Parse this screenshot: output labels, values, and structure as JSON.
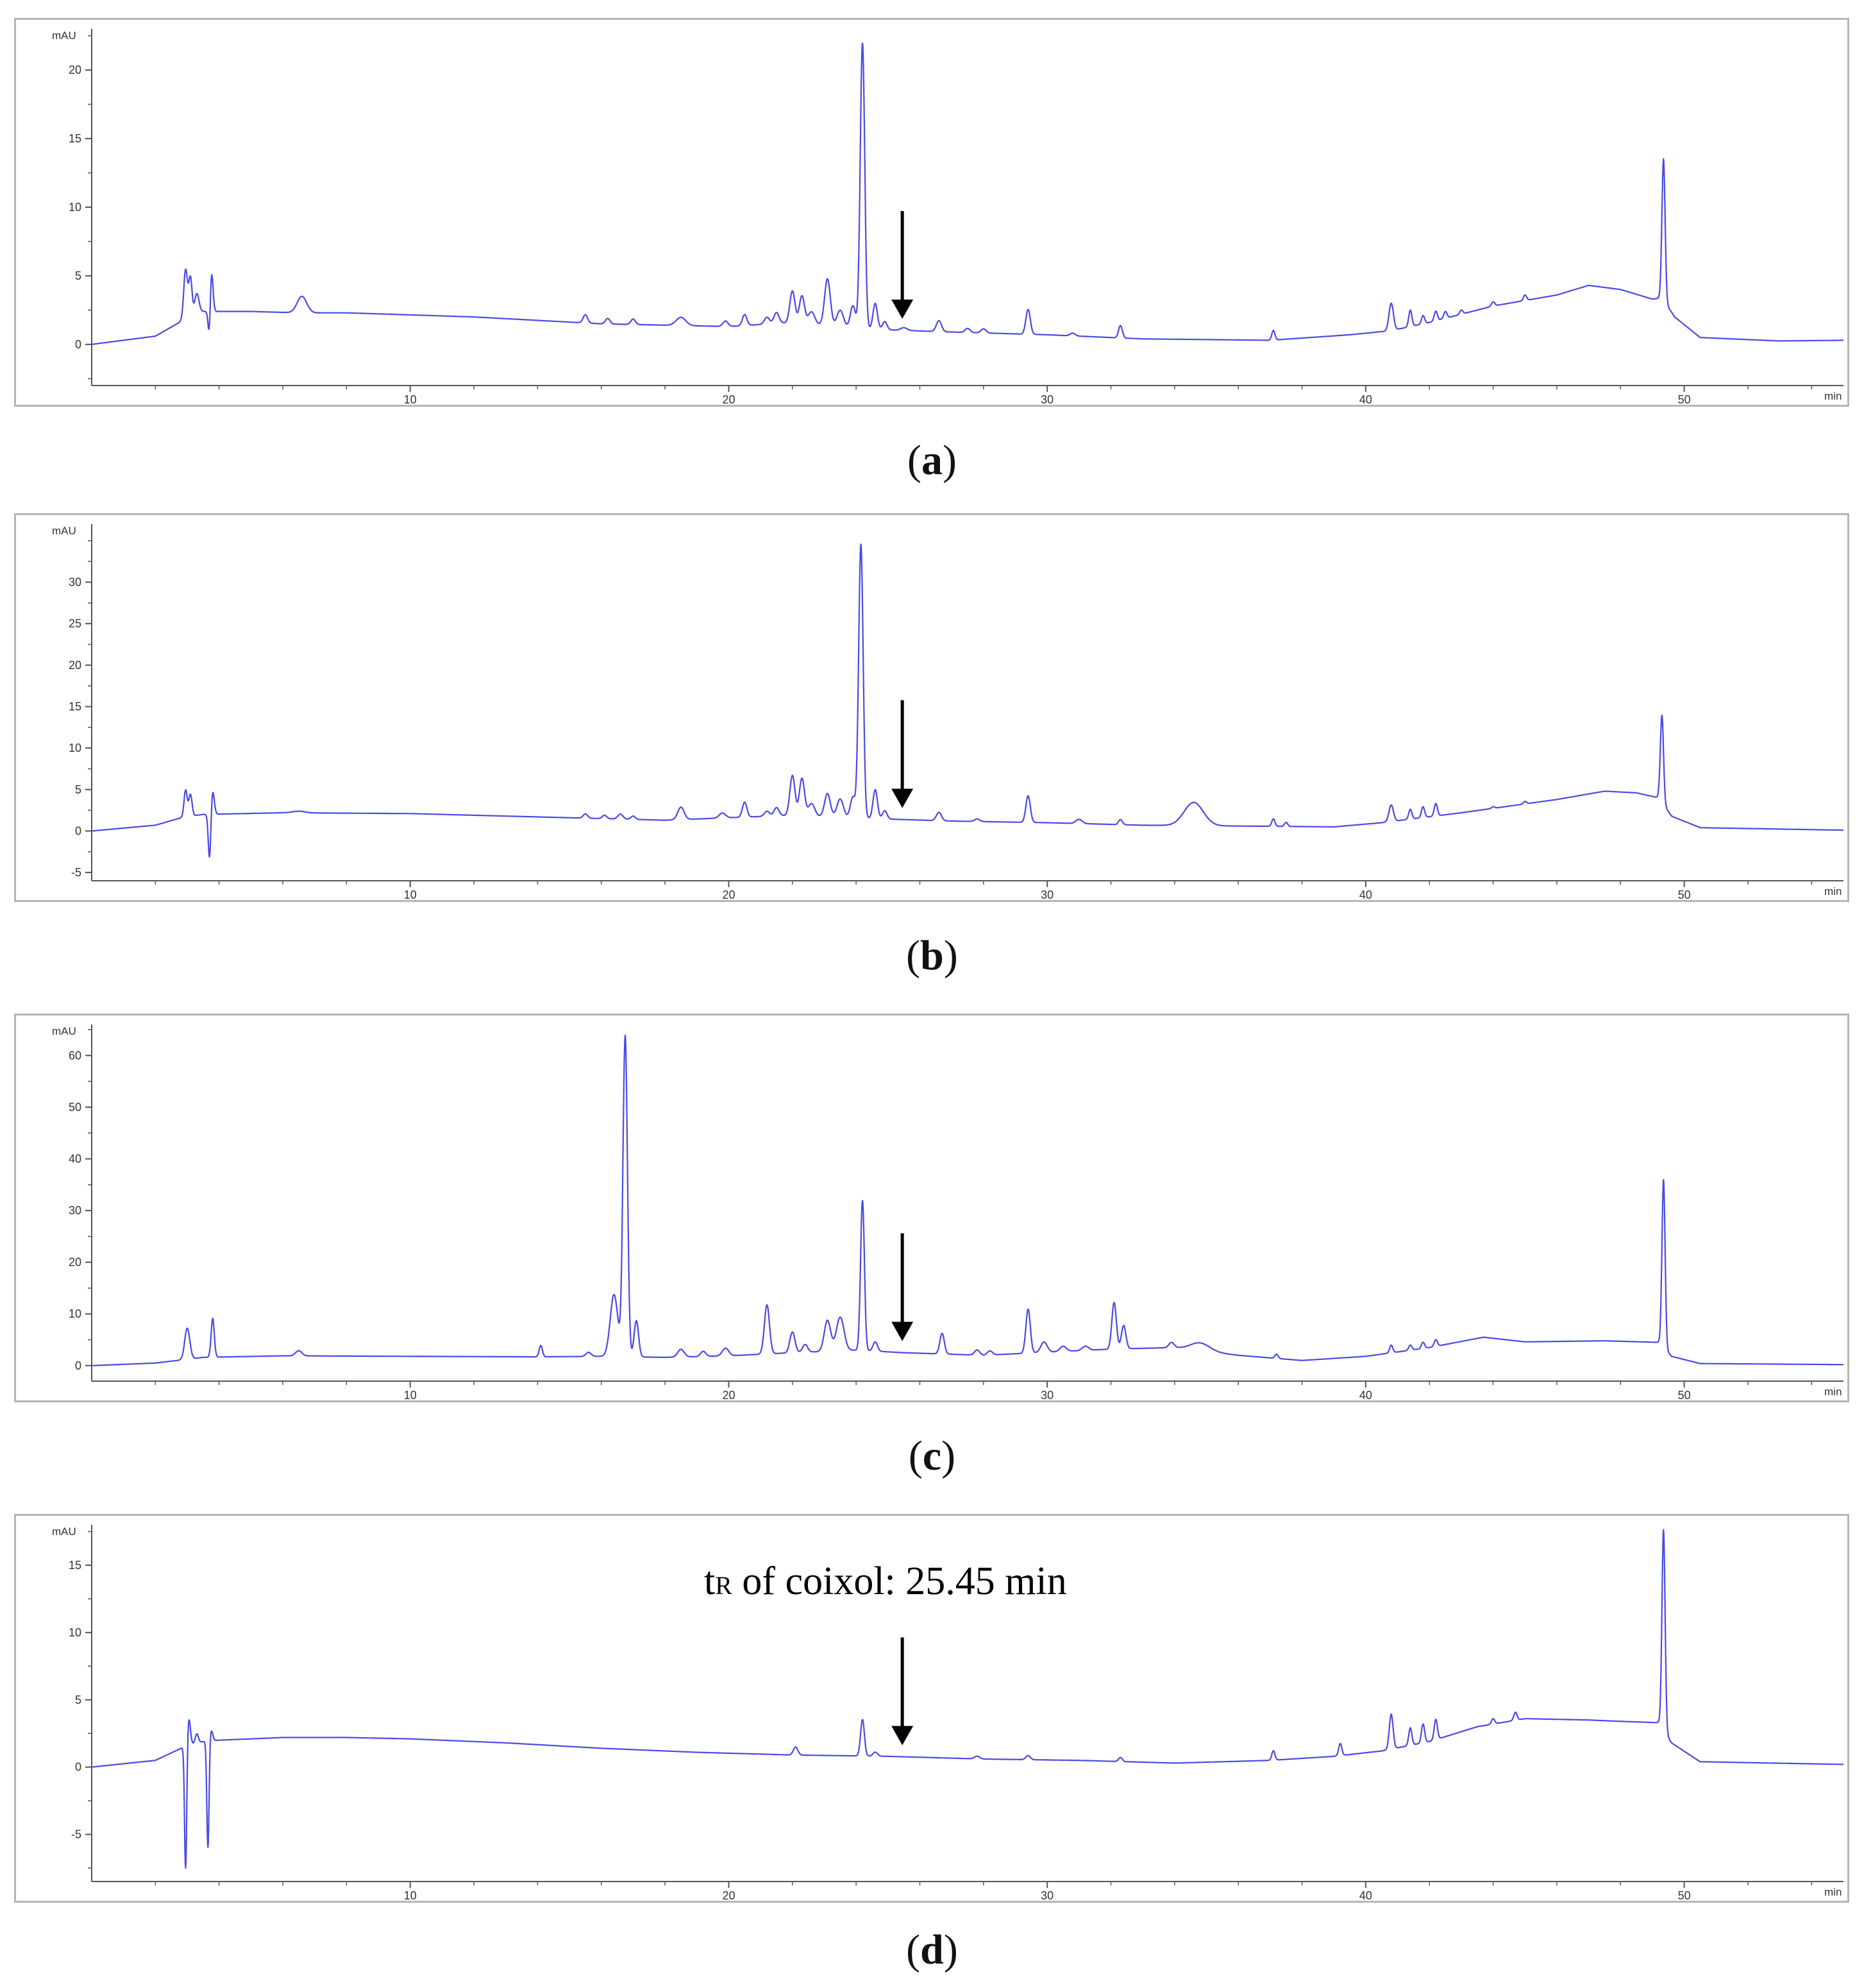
{
  "panel_labels": [
    "a",
    "b",
    "c",
    "d"
  ],
  "annotation": {
    "prefix": "t",
    "sub": "R",
    "text": " of coixol: 25.45 min"
  },
  "colors": {
    "trace": "#4a4ae6",
    "axis": "#555555",
    "arrow": "#000000",
    "frame": "#b5b5b5"
  },
  "chart_data": [
    {
      "type": "line",
      "ylabel": "mAU",
      "xlabel": "min",
      "xlim": [
        0,
        55
      ],
      "ylim": [
        -3,
        23
      ],
      "xticks": [
        10,
        20,
        30,
        40,
        50
      ],
      "yticks": [
        0,
        5,
        10,
        15,
        20
      ],
      "arrow_x": 25.45,
      "baseline": [
        [
          0,
          0
        ],
        [
          2,
          0.6
        ],
        [
          2.9,
          1.8
        ],
        [
          3.5,
          2.4
        ],
        [
          5,
          2.4
        ],
        [
          6.5,
          2.3
        ],
        [
          8,
          2.3
        ],
        [
          12,
          2.0
        ],
        [
          16,
          1.5
        ],
        [
          20,
          1.3
        ],
        [
          22,
          1.6
        ],
        [
          24.5,
          1.1
        ],
        [
          27,
          0.9
        ],
        [
          30,
          0.7
        ],
        [
          33,
          0.4
        ],
        [
          37,
          0.3
        ],
        [
          39.5,
          0.7
        ],
        [
          40.8,
          1.0
        ],
        [
          42,
          1.6
        ],
        [
          44,
          2.8
        ],
        [
          46,
          3.6
        ],
        [
          47,
          4.3
        ],
        [
          48,
          4.0
        ],
        [
          49,
          3.3
        ],
        [
          49.3,
          3.4
        ],
        [
          49.7,
          2.0
        ],
        [
          50.5,
          0.5
        ],
        [
          53,
          0.25
        ],
        [
          55,
          0.3
        ]
      ],
      "peaks": [
        [
          2.95,
          3.6,
          0.06
        ],
        [
          3.1,
          2.8,
          0.05
        ],
        [
          3.3,
          1.5,
          0.07
        ],
        [
          3.7,
          -3.0,
          0.04
        ],
        [
          3.75,
          3.6,
          0.05
        ],
        [
          6.6,
          1.2,
          0.15
        ],
        [
          15.5,
          0.6,
          0.07
        ],
        [
          16.2,
          0.4,
          0.07
        ],
        [
          17.0,
          0.4,
          0.07
        ],
        [
          18.5,
          0.6,
          0.15
        ],
        [
          19.9,
          0.4,
          0.08
        ],
        [
          20.5,
          0.8,
          0.07
        ],
        [
          21.2,
          0.5,
          0.08
        ],
        [
          21.5,
          0.8,
          0.08
        ],
        [
          22.0,
          2.3,
          0.08
        ],
        [
          22.3,
          2.0,
          0.08
        ],
        [
          22.6,
          0.9,
          0.1
        ],
        [
          23.1,
          3.4,
          0.09
        ],
        [
          23.5,
          1.2,
          0.1
        ],
        [
          23.9,
          1.6,
          0.08
        ],
        [
          24.2,
          20.8,
          0.07
        ],
        [
          24.6,
          1.9,
          0.07
        ],
        [
          24.9,
          0.6,
          0.07
        ],
        [
          25.5,
          0.2,
          0.1
        ],
        [
          26.6,
          0.8,
          0.08
        ],
        [
          27.5,
          0.3,
          0.08
        ],
        [
          28.0,
          0.3,
          0.08
        ],
        [
          29.4,
          1.8,
          0.07
        ],
        [
          30.8,
          0.2,
          0.08
        ],
        [
          32.3,
          0.9,
          0.06
        ],
        [
          37.1,
          0.7,
          0.05
        ],
        [
          40.8,
          2.0,
          0.07
        ],
        [
          41.4,
          1.2,
          0.05
        ],
        [
          41.8,
          0.6,
          0.05
        ],
        [
          42.2,
          0.7,
          0.05
        ],
        [
          42.5,
          0.5,
          0.05
        ],
        [
          43.0,
          0.3,
          0.05
        ],
        [
          44.0,
          0.3,
          0.05
        ],
        [
          45.0,
          0.4,
          0.05
        ],
        [
          49.35,
          10.3,
          0.05
        ]
      ]
    },
    {
      "type": "line",
      "ylabel": "mAU",
      "xlabel": "min",
      "xlim": [
        0,
        55
      ],
      "ylim": [
        -6,
        37
      ],
      "xticks": [
        10,
        20,
        30,
        40,
        50
      ],
      "yticks": [
        -5,
        0,
        5,
        10,
        15,
        20,
        25,
        30
      ],
      "arrow_x": 25.45,
      "baseline": [
        [
          0,
          0
        ],
        [
          2,
          0.7
        ],
        [
          2.9,
          1.7
        ],
        [
          3.5,
          2.0
        ],
        [
          6,
          2.2
        ],
        [
          10,
          2.1
        ],
        [
          14,
          1.7
        ],
        [
          18,
          1.3
        ],
        [
          20,
          1.6
        ],
        [
          22,
          1.9
        ],
        [
          24.5,
          1.5
        ],
        [
          27,
          1.2
        ],
        [
          30,
          1.0
        ],
        [
          33,
          0.7
        ],
        [
          36,
          0.6
        ],
        [
          39,
          0.5
        ],
        [
          40.5,
          1.0
        ],
        [
          43,
          2.2
        ],
        [
          46,
          3.8
        ],
        [
          47.5,
          4.8
        ],
        [
          48.5,
          4.6
        ],
        [
          49.2,
          4.0
        ],
        [
          49.6,
          1.8
        ],
        [
          50.5,
          0.4
        ],
        [
          55,
          0.1
        ]
      ],
      "peaks": [
        [
          2.95,
          3.2,
          0.05
        ],
        [
          3.1,
          2.6,
          0.05
        ],
        [
          3.7,
          -5.5,
          0.04
        ],
        [
          3.8,
          2.8,
          0.05
        ],
        [
          6.5,
          0.2,
          0.2
        ],
        [
          15.5,
          0.5,
          0.07
        ],
        [
          16.1,
          0.4,
          0.07
        ],
        [
          16.6,
          0.6,
          0.08
        ],
        [
          17.0,
          0.4,
          0.07
        ],
        [
          18.5,
          1.5,
          0.1
        ],
        [
          19.8,
          0.6,
          0.1
        ],
        [
          20.5,
          1.8,
          0.07
        ],
        [
          21.2,
          0.6,
          0.08
        ],
        [
          21.5,
          1.0,
          0.08
        ],
        [
          22.0,
          4.8,
          0.08
        ],
        [
          22.3,
          4.5,
          0.08
        ],
        [
          22.6,
          1.5,
          0.1
        ],
        [
          23.1,
          2.8,
          0.09
        ],
        [
          23.5,
          2.2,
          0.1
        ],
        [
          23.9,
          2.5,
          0.08
        ],
        [
          24.15,
          33.0,
          0.07
        ],
        [
          24.6,
          3.5,
          0.07
        ],
        [
          24.9,
          1.0,
          0.07
        ],
        [
          26.6,
          1.0,
          0.08
        ],
        [
          27.8,
          0.3,
          0.08
        ],
        [
          29.4,
          3.2,
          0.07
        ],
        [
          31.0,
          0.5,
          0.1
        ],
        [
          32.3,
          0.6,
          0.06
        ],
        [
          34.6,
          2.8,
          0.3
        ],
        [
          37.1,
          0.9,
          0.05
        ],
        [
          37.5,
          0.5,
          0.05
        ],
        [
          40.8,
          2.0,
          0.07
        ],
        [
          41.4,
          1.2,
          0.05
        ],
        [
          41.8,
          1.3,
          0.05
        ],
        [
          42.2,
          1.5,
          0.05
        ],
        [
          44.0,
          0.2,
          0.05
        ],
        [
          45.0,
          0.3,
          0.05
        ],
        [
          49.3,
          10.5,
          0.05
        ]
      ]
    },
    {
      "type": "line",
      "ylabel": "mAU",
      "xlabel": "min",
      "xlim": [
        0,
        55
      ],
      "ylim": [
        -3,
        66
      ],
      "xticks": [
        10,
        20,
        30,
        40,
        50
      ],
      "yticks": [
        0,
        10,
        20,
        30,
        40,
        50,
        60
      ],
      "arrow_x": 25.45,
      "baseline": [
        [
          0,
          0
        ],
        [
          2,
          0.5
        ],
        [
          3.5,
          1.6
        ],
        [
          6,
          1.9
        ],
        [
          10,
          1.8
        ],
        [
          14,
          1.7
        ],
        [
          16,
          1.8
        ],
        [
          18,
          1.6
        ],
        [
          20,
          1.9
        ],
        [
          22,
          2.5
        ],
        [
          24,
          3.0
        ],
        [
          25.5,
          2.5
        ],
        [
          28,
          2.0
        ],
        [
          30,
          2.6
        ],
        [
          32,
          3.2
        ],
        [
          34,
          3.5
        ],
        [
          36,
          2.0
        ],
        [
          38,
          1.0
        ],
        [
          40,
          1.8
        ],
        [
          42,
          3.5
        ],
        [
          43.7,
          5.5
        ],
        [
          45,
          4.6
        ],
        [
          47.5,
          4.8
        ],
        [
          49.2,
          4.5
        ],
        [
          49.6,
          1.8
        ],
        [
          50.5,
          0.4
        ],
        [
          55,
          0.2
        ]
      ],
      "peaks": [
        [
          3.0,
          6.0,
          0.08
        ],
        [
          3.8,
          7.5,
          0.05
        ],
        [
          6.5,
          1.0,
          0.1
        ],
        [
          14.1,
          2.2,
          0.05
        ],
        [
          15.6,
          0.8,
          0.08
        ],
        [
          16.4,
          12.0,
          0.12
        ],
        [
          16.75,
          62.0,
          0.07
        ],
        [
          17.1,
          7.0,
          0.07
        ],
        [
          18.5,
          1.5,
          0.1
        ],
        [
          19.2,
          1.0,
          0.08
        ],
        [
          19.9,
          1.5,
          0.1
        ],
        [
          21.2,
          9.5,
          0.08
        ],
        [
          22.0,
          4.0,
          0.08
        ],
        [
          22.4,
          1.5,
          0.08
        ],
        [
          23.1,
          6.0,
          0.1
        ],
        [
          23.5,
          6.5,
          0.12
        ],
        [
          24.2,
          29.0,
          0.06
        ],
        [
          24.6,
          1.8,
          0.07
        ],
        [
          26.7,
          4.0,
          0.07
        ],
        [
          27.8,
          1.0,
          0.08
        ],
        [
          28.2,
          0.8,
          0.08
        ],
        [
          29.4,
          8.5,
          0.07
        ],
        [
          29.9,
          2.0,
          0.1
        ],
        [
          30.5,
          1.0,
          0.1
        ],
        [
          31.2,
          0.8,
          0.1
        ],
        [
          32.1,
          9.0,
          0.07
        ],
        [
          32.4,
          4.5,
          0.07
        ],
        [
          33.9,
          1.0,
          0.08
        ],
        [
          34.8,
          1.5,
          0.3
        ],
        [
          37.2,
          0.8,
          0.05
        ],
        [
          40.8,
          1.5,
          0.05
        ],
        [
          41.4,
          1.0,
          0.05
        ],
        [
          41.8,
          1.2,
          0.05
        ],
        [
          42.2,
          1.3,
          0.05
        ],
        [
          49.35,
          32.5,
          0.05
        ]
      ]
    },
    {
      "type": "line",
      "ylabel": "mAU",
      "xlabel": "min",
      "xlim": [
        0,
        55
      ],
      "ylim": [
        -8.5,
        18
      ],
      "xticks": [
        10,
        20,
        30,
        40,
        50
      ],
      "yticks": [
        -5,
        0,
        5,
        10,
        15
      ],
      "arrow_x": 25.45,
      "baseline": [
        [
          0,
          0
        ],
        [
          2,
          0.5
        ],
        [
          2.9,
          1.5
        ],
        [
          3.5,
          1.9
        ],
        [
          4,
          2.0
        ],
        [
          6,
          2.2
        ],
        [
          8,
          2.2
        ],
        [
          10,
          2.1
        ],
        [
          13,
          1.8
        ],
        [
          16,
          1.4
        ],
        [
          19,
          1.1
        ],
        [
          22,
          0.9
        ],
        [
          25,
          0.8
        ],
        [
          28,
          0.6
        ],
        [
          31,
          0.5
        ],
        [
          34,
          0.3
        ],
        [
          37,
          0.5
        ],
        [
          39,
          0.8
        ],
        [
          40.5,
          1.2
        ],
        [
          42,
          1.9
        ],
        [
          43.5,
          3.0
        ],
        [
          45,
          3.6
        ],
        [
          47,
          3.5
        ],
        [
          48,
          3.4
        ],
        [
          49.2,
          3.3
        ],
        [
          49.6,
          1.8
        ],
        [
          50.5,
          0.4
        ],
        [
          55,
          0.2
        ]
      ],
      "peaks": [
        [
          2.95,
          -9.3,
          0.035
        ],
        [
          3.05,
          2.0,
          0.05
        ],
        [
          3.3,
          0.7,
          0.05
        ],
        [
          3.65,
          -8.0,
          0.035
        ],
        [
          3.75,
          0.8,
          0.05
        ],
        [
          22.1,
          0.6,
          0.07
        ],
        [
          24.2,
          2.7,
          0.06
        ],
        [
          24.6,
          0.3,
          0.07
        ],
        [
          27.8,
          0.2,
          0.08
        ],
        [
          29.4,
          0.3,
          0.07
        ],
        [
          32.3,
          0.3,
          0.06
        ],
        [
          37.1,
          0.7,
          0.05
        ],
        [
          39.2,
          0.9,
          0.05
        ],
        [
          40.8,
          2.6,
          0.06
        ],
        [
          41.4,
          1.3,
          0.05
        ],
        [
          41.8,
          1.4,
          0.05
        ],
        [
          42.2,
          1.5,
          0.05
        ],
        [
          44.0,
          0.4,
          0.05
        ],
        [
          44.7,
          0.6,
          0.05
        ],
        [
          49.35,
          14.9,
          0.05
        ]
      ]
    }
  ]
}
